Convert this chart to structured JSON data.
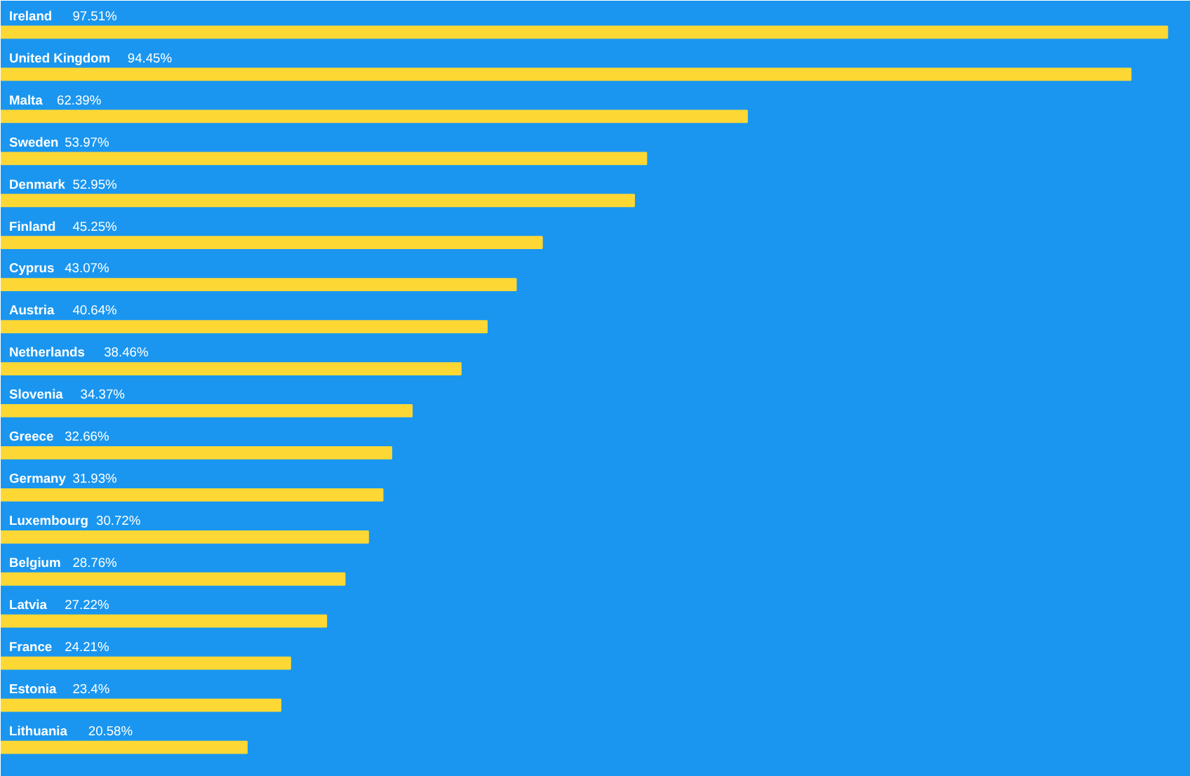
{
  "chart_data": {
    "type": "bar",
    "orientation": "horizontal",
    "categories": [
      "Ireland",
      "United Kingdom",
      "Malta",
      "Sweden",
      "Denmark",
      "Finland",
      "Cyprus",
      "Austria",
      "Netherlands",
      "Slovenia",
      "Greece",
      "Germany",
      "Luxembourg",
      "Belgium",
      "Latvia",
      "France",
      "Estonia",
      "Lithuania"
    ],
    "values": [
      97.51,
      94.45,
      62.39,
      53.97,
      52.95,
      45.25,
      43.07,
      40.64,
      38.46,
      34.37,
      32.66,
      31.93,
      30.72,
      28.76,
      27.22,
      24.21,
      23.4,
      20.58
    ],
    "value_labels": [
      "97.51%",
      "94.45%",
      "62.39%",
      "53.97%",
      "52.95%",
      "45.25%",
      "43.07%",
      "40.64%",
      "38.46%",
      "34.37%",
      "32.66%",
      "31.93%",
      "30.72%",
      "28.76%",
      "27.22%",
      "24.21%",
      "23.4%",
      "20.58%"
    ],
    "color": "#fdd835",
    "grid": false
  }
}
